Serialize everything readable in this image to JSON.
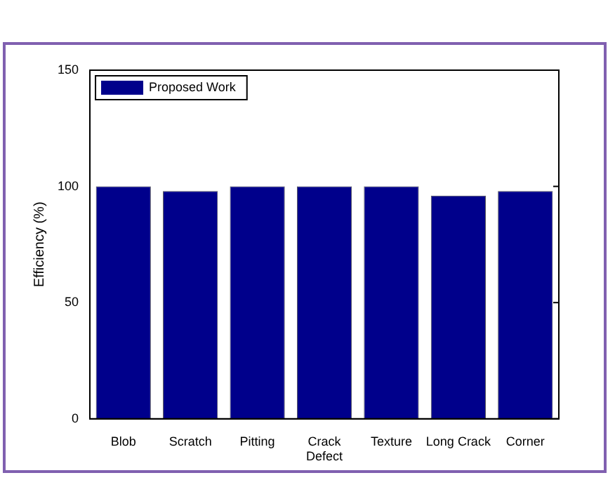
{
  "chart_data": {
    "type": "bar",
    "ylabel": "Efficiency (%)",
    "categories": [
      "Blob",
      "Scratch",
      "Pitting",
      "Crack Defect",
      "Texture",
      "Long Crack",
      "Corner"
    ],
    "series": [
      {
        "name": "Proposed Work",
        "color": "#00008b",
        "values": [
          100,
          98,
          100,
          100,
          100,
          96,
          98
        ]
      }
    ],
    "ylim": [
      0,
      150
    ],
    "yticks": [
      0,
      50,
      100,
      150
    ],
    "grid": false,
    "legend": "top left"
  }
}
